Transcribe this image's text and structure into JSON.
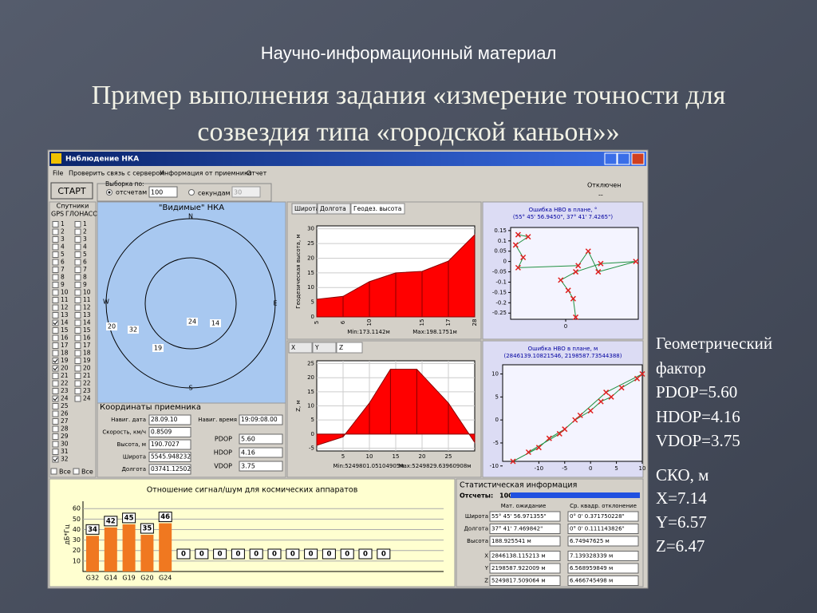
{
  "slide": {
    "subtitle": "Научно-информационный материал",
    "title_lines": [
      "Пример выполнения задания «измерение точности для",
      "созвездия типа «городской каньон»»"
    ],
    "side_lines": [
      "Геометрический",
      "фактор",
      "PDOP=5.60",
      "HDOP=4.16",
      "VDOP=3.75",
      "СКО, м",
      "X=7.14",
      "Y=6.57",
      "Z=6.47"
    ]
  },
  "window": {
    "title": "Наблюдение НКА",
    "menu": [
      "File",
      "Проверить связь с сервером",
      "Информация от приемника",
      "Отчет"
    ],
    "toolbar": {
      "start": "СТАРТ",
      "sample_by": "Выборка по:",
      "by_count": "отсчетам",
      "count": "100",
      "by_seconds": "секундам",
      "seconds": "30",
      "status": "Отключен",
      "status_value": "--"
    },
    "satellites": {
      "title": "Спутники",
      "gps": "GPS",
      "glonass": "ГЛОНАСС",
      "gps_numbers": [
        1,
        2,
        3,
        4,
        5,
        6,
        7,
        8,
        9,
        10,
        11,
        12,
        13,
        14,
        15,
        16,
        17,
        18,
        19,
        20,
        21,
        22,
        23,
        24,
        25,
        26,
        27,
        28,
        29,
        30,
        31,
        32
      ],
      "glonass_numbers": [
        1,
        2,
        3,
        4,
        5,
        6,
        7,
        8,
        9,
        10,
        11,
        12,
        13,
        14,
        15,
        16,
        17,
        18,
        19,
        20,
        21,
        22,
        23,
        24
      ],
      "gps_checked": [
        14,
        19,
        20,
        24,
        32
      ],
      "all_gps": "Все",
      "all_glonass": "Все"
    },
    "sky": {
      "title": "\"Видимые\" НКА",
      "north": "N",
      "east": "E",
      "south": "S",
      "west": "W",
      "labels": [
        "24",
        "14",
        "20",
        "32",
        "19"
      ]
    },
    "coords": {
      "title": "Координаты приемника",
      "fields": [
        {
          "label": "Навиг. дата",
          "value": "28.09.10"
        },
        {
          "label": "Скорость, км/ч",
          "value": "0.8509"
        },
        {
          "label": "Высота, м",
          "value": "190.7027"
        },
        {
          "label": "Широта",
          "value": "5545.948232"
        },
        {
          "label": "Долгота",
          "value": "03741.12502"
        }
      ],
      "time_label": "Навиг. время",
      "time_value": "19:09:08.00",
      "dop": [
        {
          "label": "PDOP",
          "value": "5.60"
        },
        {
          "label": "HDOP",
          "value": "4.16"
        },
        {
          "label": "VDOP",
          "value": "3.75"
        }
      ]
    },
    "height_chart": {
      "type": "area",
      "tabs": [
        "Широта",
        "Долгота",
        "Геодез. высота"
      ],
      "ylabel": "Геодезическая высота, м",
      "categories": [
        "5",
        "6",
        "10",
        null,
        "15",
        "17",
        "28"
      ],
      "values": [
        6,
        7,
        12,
        15,
        15.5,
        19,
        28
      ],
      "ylim": [
        0,
        31
      ],
      "yticks": [
        0,
        5,
        10,
        15,
        20,
        25,
        30
      ],
      "min_text": "Min:173.1142м",
      "max_text": "Max:198.1751м",
      "color": "#ff0000"
    },
    "z_chart": {
      "type": "area",
      "tabs": [
        "X",
        "Y",
        "Z"
      ],
      "ylabel": "Z, м",
      "x": [
        0,
        5,
        10,
        14,
        19,
        25,
        30
      ],
      "values": [
        -4,
        -1,
        11,
        23,
        23,
        11,
        -3
      ],
      "xlim": [
        0,
        30
      ],
      "xticks": [
        5,
        10,
        15,
        20,
        25
      ],
      "ylim": [
        -6,
        26
      ],
      "yticks": [
        -5,
        0,
        5,
        10,
        15,
        20,
        25
      ],
      "min_text": "Min:5249801.05104905м",
      "max_text": "Max:5249829.63960908м",
      "color": "#ff0000"
    },
    "scatter_deg": {
      "type": "scatter",
      "title": "Ошибка НВО в плане, °",
      "subtitle": "(55° 45' 56.9450\", 37° 41' 7.4265\")",
      "xlim": [
        -0.22,
        0.29
      ],
      "xticks": [
        0
      ],
      "ylim": [
        -0.28,
        0.165
      ],
      "yticks": [
        0.15,
        0.1,
        0.05,
        0,
        -0.05,
        -0.1,
        -0.15,
        -0.2,
        -0.25
      ],
      "points": [
        [
          -0.19,
          0.13
        ],
        [
          -0.15,
          0.12
        ],
        [
          -0.2,
          0.08
        ],
        [
          -0.17,
          0.02
        ],
        [
          -0.19,
          -0.03
        ],
        [
          0.05,
          -0.02
        ],
        [
          0.09,
          0.05
        ],
        [
          0.13,
          -0.05
        ],
        [
          0.28,
          0.0
        ],
        [
          0.14,
          -0.01
        ],
        [
          0.04,
          -0.05
        ],
        [
          -0.02,
          -0.09
        ],
        [
          0.01,
          -0.14
        ],
        [
          0.03,
          -0.18
        ],
        [
          0.04,
          -0.27
        ]
      ]
    },
    "scatter_m": {
      "type": "scatter",
      "title": "Ошибка НВО в плане, м",
      "subtitle": "(2846139.10821546, 2198587.73544388)",
      "xlim": [
        -17,
        10
      ],
      "xticks": [
        -10,
        -5,
        0,
        5,
        10
      ],
      "ylim": [
        -9,
        12
      ],
      "yticks": [
        10,
        5,
        0,
        -5,
        -10
      ],
      "points": [
        [
          -15,
          -9
        ],
        [
          -10,
          -6
        ],
        [
          -8,
          -4
        ],
        [
          -5,
          -2
        ],
        [
          -3,
          0
        ],
        [
          0,
          2
        ],
        [
          2,
          4
        ],
        [
          4,
          5
        ],
        [
          6,
          7
        ],
        [
          9,
          9
        ],
        [
          10,
          10
        ],
        [
          3,
          6
        ],
        [
          -2,
          1
        ],
        [
          -6,
          -3
        ],
        [
          -12,
          -7
        ]
      ]
    },
    "snr_chart": {
      "type": "bar",
      "title": "Отношение сигнал/шум для космических аппаратов",
      "ylabel": "дБ*Гц",
      "categories": [
        "G32",
        "G14",
        "G19",
        "G20",
        "G24",
        null,
        null,
        null,
        null,
        null,
        null,
        null,
        null,
        null,
        null,
        null,
        null
      ],
      "values": [
        34,
        42,
        45,
        35,
        46,
        0,
        0,
        0,
        0,
        0,
        0,
        0,
        0,
        0,
        0,
        0,
        0
      ],
      "ylim": [
        0,
        67
      ],
      "yticks": [
        10,
        20,
        30,
        40,
        50,
        60
      ],
      "color": "#f07820"
    },
    "stats": {
      "title": "Статистическая информация",
      "count_label": "Отсчеты:",
      "count": "100",
      "headers": [
        "Мат. ожидание",
        "Ср. квадр. отклонение"
      ],
      "rows": [
        [
          "Широта",
          "55° 45' 56.971355\"",
          "0° 0' 0.371750228\""
        ],
        [
          "Долгота",
          "37° 41' 7.469842\"",
          "0° 0' 0.111143826\""
        ],
        [
          "Высота",
          "188.925541 м",
          "6.74947625 м"
        ],
        [
          "X",
          "2846138.115213 м",
          "7.139328339 м"
        ],
        [
          "Y",
          "2198587.922009 м",
          "6.568959849 м"
        ],
        [
          "Z",
          "5249817.509064 м",
          "6.466745498 м"
        ]
      ]
    }
  }
}
